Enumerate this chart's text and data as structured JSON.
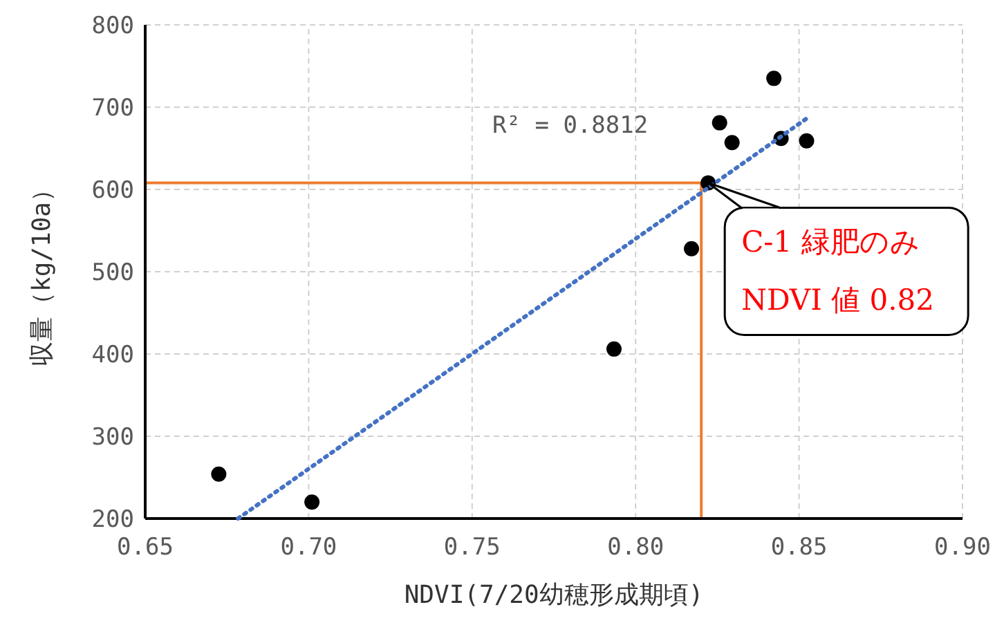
{
  "chart_data": {
    "type": "scatter",
    "xlabel": "NDVI(7/20幼穂形成期頃)",
    "ylabel": "収量（kg/10a）",
    "xlim": [
      0.65,
      0.9
    ],
    "xticks": [
      {
        "value": 0.65,
        "label": "0.65"
      },
      {
        "value": 0.7,
        "label": "0.70"
      },
      {
        "value": 0.75,
        "label": "0.75"
      },
      {
        "value": 0.8,
        "label": "0.80"
      },
      {
        "value": 0.85,
        "label": "0.85"
      },
      {
        "value": 0.9,
        "label": "0.90"
      }
    ],
    "ylim": [
      200,
      800
    ],
    "yticks": [
      200,
      300,
      400,
      500,
      600,
      700,
      800
    ],
    "grid": true,
    "series": [
      {
        "color": "#000000",
        "marker": "circle",
        "x": [
          0.6725,
          0.701,
          0.7934,
          0.8171,
          0.8222,
          0.8257,
          0.8295,
          0.8423,
          0.8445,
          0.8523
        ],
        "values": [
          254,
          220,
          406,
          528,
          608,
          681,
          657,
          735,
          662,
          659
        ]
      },
      {
        "type": "line",
        "color": "#4472c4",
        "line_style": "dotted",
        "marker": "none",
        "x": [
          0.6784,
          0.8526
        ],
        "values": [
          200,
          687
        ]
      }
    ],
    "ref_lines": [
      {
        "axis": "y",
        "value": 608,
        "color": "#ed7d31"
      },
      {
        "axis": "x",
        "value": 0.8201,
        "color": "#ed7d31"
      }
    ],
    "annotations": [
      "R² = 0.8812",
      {
        "text": "C-1 緑肥のみ\nNDVI 値 0.82",
        "x": 0.8222,
        "y": 608
      }
    ]
  }
}
